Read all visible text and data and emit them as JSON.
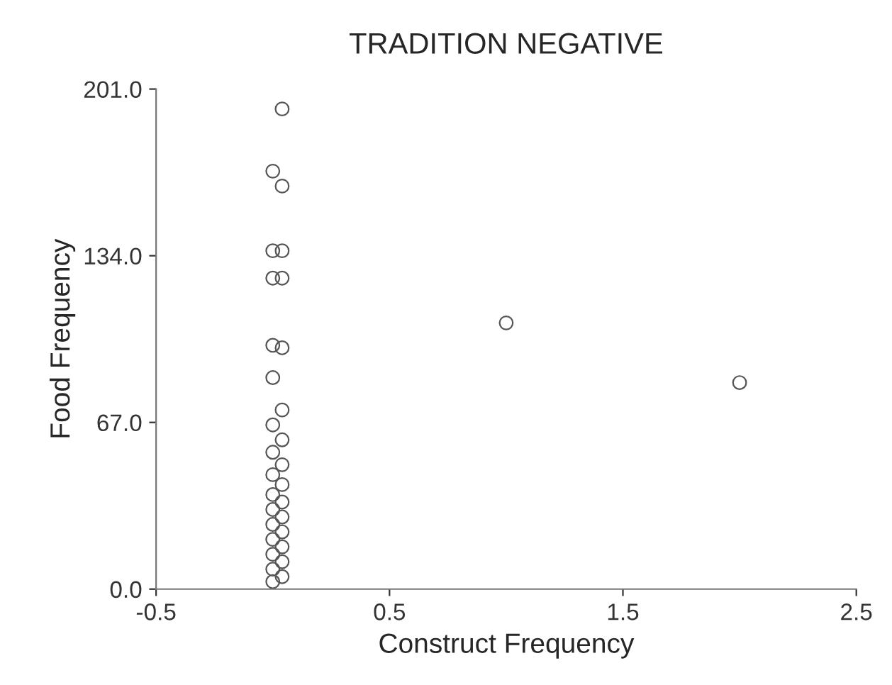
{
  "chart_data": {
    "type": "scatter",
    "title": "TRADITION NEGATIVE",
    "xlabel": "Construct Frequency",
    "ylabel": "Food Frequency",
    "x": [
      0.04,
      0.0,
      0.04,
      0.0,
      0.04,
      0.0,
      0.04,
      0.0,
      0.04,
      0.0,
      0.04,
      0.0,
      0.04,
      0.0,
      0.04,
      0.0,
      0.04,
      0.0,
      0.04,
      0.0,
      0.04,
      0.0,
      0.04,
      0.0,
      0.04,
      0.0,
      0.04,
      0.0,
      0.04,
      0.0,
      1.0,
      2.0
    ],
    "values": [
      193,
      168,
      162,
      136,
      136,
      125,
      125,
      98,
      97,
      85,
      72,
      66,
      60,
      55,
      50,
      46,
      42,
      38,
      35,
      32,
      29,
      26,
      23,
      20,
      17,
      14,
      11,
      8,
      5,
      3,
      107,
      83
    ],
    "color": "#555555",
    "marker": "circle",
    "grid": false,
    "xlim": [
      -0.5,
      2.5
    ],
    "xticks": [
      -0.5,
      0.5,
      1.5,
      2.5
    ],
    "ylim": [
      0,
      201
    ],
    "yticks": [
      {
        "value": 0,
        "label": "0.0"
      },
      {
        "value": 67,
        "label": "67.0"
      },
      {
        "value": 134,
        "label": "134.0"
      },
      {
        "value": 201,
        "label": "201.0"
      }
    ]
  }
}
